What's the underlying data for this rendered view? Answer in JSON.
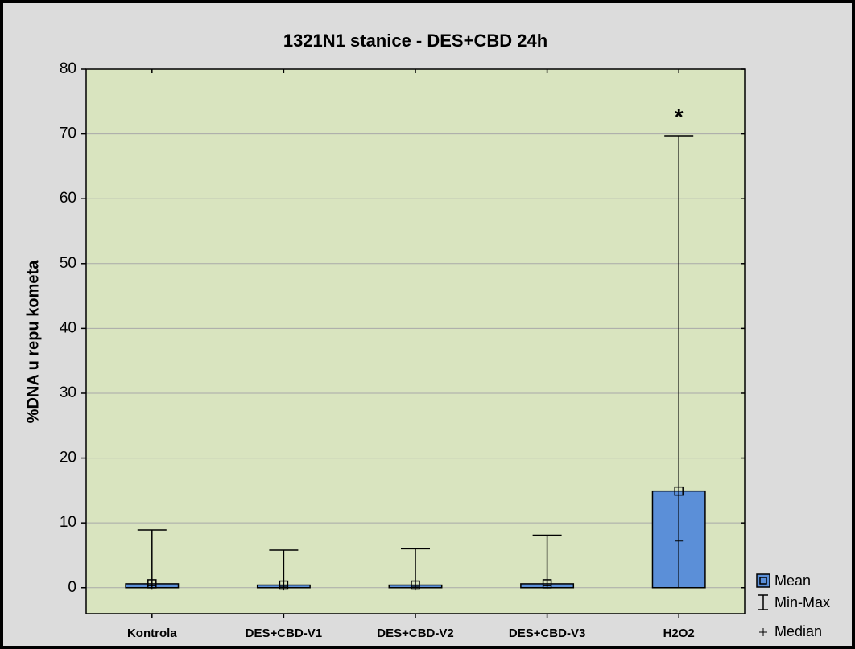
{
  "chart_data": {
    "type": "bar",
    "title": "1321N1 stanice - DES+CBD 24h",
    "y_label": "%DNA u repu kometa",
    "categories": [
      "Kontrola",
      "DES+CBD-V1",
      "DES+CBD-V2",
      "DES+CBD-V3",
      "H2O2"
    ],
    "series": [
      {
        "name": "Mean",
        "color": "#5b8fd8",
        "values": [
          0.6,
          0.4,
          0.4,
          0.6,
          14.9
        ]
      },
      {
        "name": "Min-Max",
        "min": [
          0,
          0,
          0,
          0,
          0
        ],
        "max": [
          8.9,
          5.8,
          6.0,
          8.1,
          69.7
        ]
      },
      {
        "name": "Median",
        "values": [
          0.3,
          0.2,
          0.2,
          0.3,
          7.2
        ]
      }
    ],
    "annotations": [
      {
        "text": "*",
        "category": "H2O2"
      }
    ],
    "ylim": [
      -4,
      80
    ],
    "yticks": [
      0,
      10,
      20,
      30,
      40,
      50,
      60,
      70,
      80
    ],
    "grid": true,
    "plot_color": "#d9e4bf",
    "legend": "bottom-right"
  }
}
